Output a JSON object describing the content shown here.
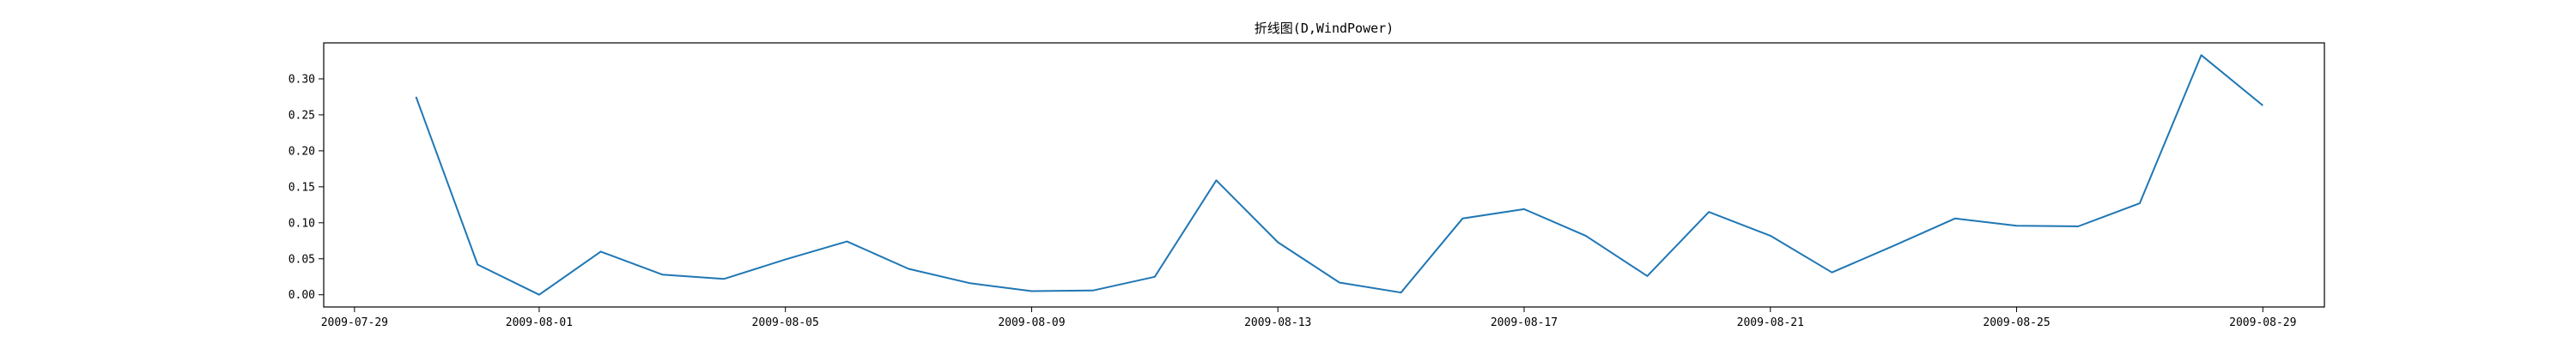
{
  "chart_data": {
    "type": "line",
    "title": "折线图(D,WindPower)",
    "xlabel": "",
    "ylabel": "",
    "x_start": "2009-07-30",
    "x": [
      "2009-07-30",
      "2009-07-31",
      "2009-08-01",
      "2009-08-02",
      "2009-08-03",
      "2009-08-04",
      "2009-08-05",
      "2009-08-06",
      "2009-08-07",
      "2009-08-08",
      "2009-08-09",
      "2009-08-10",
      "2009-08-11",
      "2009-08-12",
      "2009-08-13",
      "2009-08-14",
      "2009-08-15",
      "2009-08-16",
      "2009-08-17",
      "2009-08-18",
      "2009-08-19",
      "2009-08-20",
      "2009-08-21",
      "2009-08-22",
      "2009-08-23",
      "2009-08-24",
      "2009-08-25",
      "2009-08-26",
      "2009-08-27",
      "2009-08-28",
      "2009-08-29"
    ],
    "series": [
      {
        "color": "#1f77b4",
        "values": [
          0.275,
          0.042,
          0.0,
          0.06,
          0.028,
          0.022,
          0.049,
          0.074,
          0.036,
          0.016,
          0.005,
          0.006,
          0.025,
          0.159,
          0.073,
          0.017,
          0.003,
          0.106,
          0.119,
          0.082,
          0.026,
          0.115,
          0.082,
          0.031,
          0.068,
          0.106,
          0.096,
          0.095,
          0.127,
          0.333,
          0.263
        ]
      }
    ],
    "x_ticks": [
      "2009-07-29",
      "2009-08-01",
      "2009-08-05",
      "2009-08-09",
      "2009-08-13",
      "2009-08-17",
      "2009-08-21",
      "2009-08-25",
      "2009-08-29"
    ],
    "y_ticks": [
      "0.00",
      "0.05",
      "0.10",
      "0.15",
      "0.20",
      "0.25",
      "0.30"
    ],
    "xlim": [
      "2009-07-28.5",
      "2009-08-30"
    ],
    "ylim": [
      -0.017,
      0.35
    ],
    "grid": false,
    "legend": "none"
  }
}
